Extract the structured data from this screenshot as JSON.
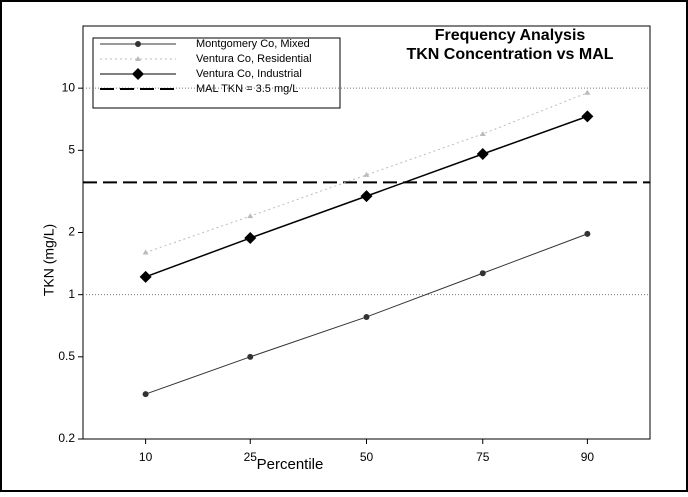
{
  "chart_data": {
    "type": "line",
    "title": [
      "Frequency Analysis",
      "TKN Concentration vs MAL"
    ],
    "x_label": "Percentile",
    "y_label": "TKN (mg/L)",
    "x": [
      10,
      25,
      50,
      75,
      90
    ],
    "xscale": "probability",
    "xlim": [
      5,
      95
    ],
    "xticks": [
      10,
      25,
      50,
      75,
      90
    ],
    "yscale": "log",
    "ylim": [
      0.2,
      20
    ],
    "yticks": [
      0.2,
      0.5,
      1,
      2,
      5,
      10
    ],
    "grid": true,
    "legend": "upper-left",
    "series": [
      {
        "name": "Montgomery Co, Mixed",
        "color": "#333333",
        "marker": "circle",
        "dash": "solid",
        "values": [
          0.33,
          0.5,
          0.78,
          1.27,
          1.97
        ]
      },
      {
        "name": "Ventura Co, Residential",
        "color": "#bbbbbb",
        "marker": "triangle",
        "dash": "dotted",
        "values": [
          1.6,
          2.4,
          3.8,
          6.0,
          9.5
        ]
      },
      {
        "name": "Ventura Co, Industrial",
        "color": "#000000",
        "marker": "diamond",
        "dash": "solid",
        "values": [
          1.22,
          1.88,
          3.0,
          4.8,
          7.3
        ]
      }
    ],
    "reference_line": {
      "name": "MAL TKN = 3.5 mg/L",
      "value": 3.5,
      "color": "#000000",
      "dash": "dashed"
    }
  }
}
